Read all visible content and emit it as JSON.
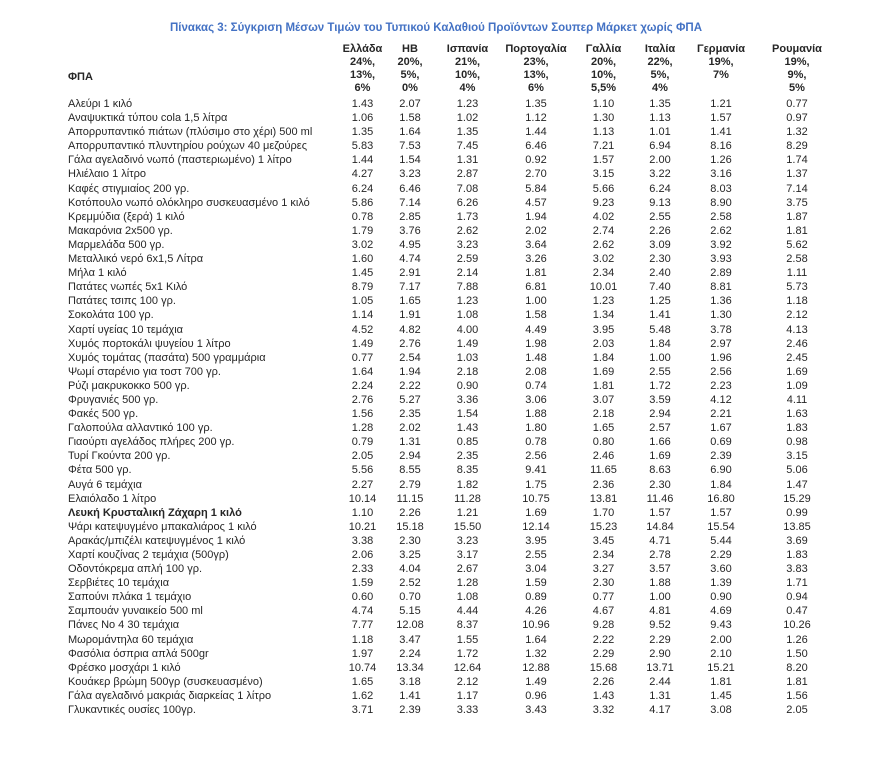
{
  "title": "Πίνακας 3: Σύγκριση Μέσων Τιμών του Τυπικού Καλαθιού Προϊόντων Σουπερ Μάρκετ χωρίς ΦΠΑ",
  "vat_row_label": "ΦΠΑ",
  "columns": [
    {
      "name": "Ελλάδα",
      "vat": [
        "24%,",
        "13%,",
        "6%"
      ]
    },
    {
      "name": "ΗΒ",
      "vat": [
        "20%,",
        "5%,",
        "0%"
      ]
    },
    {
      "name": "Ισπανία",
      "vat": [
        "21%,",
        "10%,",
        "4%"
      ]
    },
    {
      "name": "Πορτογαλία",
      "vat": [
        "23%,",
        "13%,",
        "6%"
      ]
    },
    {
      "name": "Γαλλία",
      "vat": [
        "20%,",
        "10%,",
        "5,5%"
      ]
    },
    {
      "name": "Ιταλία",
      "vat": [
        "22%,",
        "5%,",
        "4%"
      ]
    },
    {
      "name": "Γερμανία",
      "vat": [
        "19%,",
        "7%"
      ]
    },
    {
      "name": "Ρουμανία",
      "vat": [
        "19%,",
        "9%,",
        "5%"
      ]
    }
  ],
  "rows": [
    {
      "label": "Αλεύρι 1 κιλό",
      "values": [
        "1.43",
        "2.07",
        "1.23",
        "1.35",
        "1.10",
        "1.35",
        "1.21",
        "0.77"
      ],
      "bold": false
    },
    {
      "label": "Αναψυκτικά τύπου cola 1,5 λίτρα",
      "values": [
        "1.06",
        "1.58",
        "1.02",
        "1.12",
        "1.30",
        "1.13",
        "1.57",
        "0.97"
      ],
      "bold": false
    },
    {
      "label": "Απορρυπαντικό πιάτων (πλύσιμο στο χέρι) 500 ml",
      "values": [
        "1.35",
        "1.64",
        "1.35",
        "1.44",
        "1.13",
        "1.01",
        "1.41",
        "1.32"
      ],
      "bold": false
    },
    {
      "label": "Απορρυπαντικό πλυντηρίου ρούχων 40 μεζούρες",
      "values": [
        "5.83",
        "7.53",
        "7.45",
        "6.46",
        "7.21",
        "6.94",
        "8.16",
        "8.29"
      ],
      "bold": false
    },
    {
      "label": "Γάλα αγελαδινό νωπό (παστεριωμένο) 1 λίτρο",
      "values": [
        "1.44",
        "1.54",
        "1.31",
        "0.92",
        "1.57",
        "2.00",
        "1.26",
        "1.74"
      ],
      "bold": false
    },
    {
      "label": "Ηλιέλαιο 1 λίτρο",
      "values": [
        "4.27",
        "3.23",
        "2.87",
        "2.70",
        "3.15",
        "3.22",
        "3.16",
        "1.37"
      ],
      "bold": false
    },
    {
      "label": "Καφές στιγμιαίος 200 γρ.",
      "values": [
        "6.24",
        "6.46",
        "7.08",
        "5.84",
        "5.66",
        "6.24",
        "8.03",
        "7.14"
      ],
      "bold": false
    },
    {
      "label": "Κοτόπουλο νωπό ολόκληρο συσκευασμένο 1 κιλό",
      "values": [
        "5.86",
        "7.14",
        "6.26",
        "4.57",
        "9.23",
        "9.13",
        "8.90",
        "3.75"
      ],
      "bold": false
    },
    {
      "label": "Κρεμμύδια (ξερά) 1 κιλό",
      "values": [
        "0.78",
        "2.85",
        "1.73",
        "1.94",
        "4.02",
        "2.55",
        "2.58",
        "1.87"
      ],
      "bold": false
    },
    {
      "label": "Μακαρόνια 2x500 γρ.",
      "values": [
        "1.79",
        "3.76",
        "2.62",
        "2.02",
        "2.74",
        "2.26",
        "2.62",
        "1.81"
      ],
      "bold": false
    },
    {
      "label": "Μαρμελάδα 500 γρ.",
      "values": [
        "3.02",
        "4.95",
        "3.23",
        "3.64",
        "2.62",
        "3.09",
        "3.92",
        "5.62"
      ],
      "bold": false
    },
    {
      "label": "Μεταλλικό νερό 6x1,5 Λίτρα",
      "values": [
        "1.60",
        "4.74",
        "2.59",
        "3.26",
        "3.02",
        "2.30",
        "3.93",
        "2.58"
      ],
      "bold": false
    },
    {
      "label": "Μήλα 1 κιλό",
      "values": [
        "1.45",
        "2.91",
        "2.14",
        "1.81",
        "2.34",
        "2.40",
        "2.89",
        "1.11"
      ],
      "bold": false
    },
    {
      "label": "Πατάτες νωπές 5x1 Κιλό",
      "values": [
        "8.79",
        "7.17",
        "7.88",
        "6.81",
        "10.01",
        "7.40",
        "8.81",
        "5.73"
      ],
      "bold": false
    },
    {
      "label": "Πατάτες τσιπς 100 γρ.",
      "values": [
        "1.05",
        "1.65",
        "1.23",
        "1.00",
        "1.23",
        "1.25",
        "1.36",
        "1.18"
      ],
      "bold": false
    },
    {
      "label": "Σοκολάτα 100 γρ.",
      "values": [
        "1.14",
        "1.91",
        "1.08",
        "1.58",
        "1.34",
        "1.41",
        "1.30",
        "2.12"
      ],
      "bold": false
    },
    {
      "label": "Χαρτί υγείας 10 τεμάχια",
      "values": [
        "4.52",
        "4.82",
        "4.00",
        "4.49",
        "3.95",
        "5.48",
        "3.78",
        "4.13"
      ],
      "bold": false
    },
    {
      "label": "Χυμός πορτοκάλι ψυγείου 1 λίτρο",
      "values": [
        "1.49",
        "2.76",
        "1.49",
        "1.98",
        "2.03",
        "1.84",
        "2.97",
        "2.46"
      ],
      "bold": false
    },
    {
      "label": "Χυμός τομάτας (πασάτα) 500 γραμμάρια",
      "values": [
        "0.77",
        "2.54",
        "1.03",
        "1.48",
        "1.84",
        "1.00",
        "1.96",
        "2.45"
      ],
      "bold": false
    },
    {
      "label": "Ψωμί σταρένιο για τοστ 700 γρ.",
      "values": [
        "1.64",
        "1.94",
        "2.18",
        "2.08",
        "1.69",
        "2.55",
        "2.56",
        "1.69"
      ],
      "bold": false
    },
    {
      "label": "Ρύζι μακρυκοκκο 500 γρ.",
      "values": [
        "2.24",
        "2.22",
        "0.90",
        "0.74",
        "1.81",
        "1.72",
        "2.23",
        "1.09"
      ],
      "bold": false
    },
    {
      "label": "Φρυγανιές 500 γρ.",
      "values": [
        "2.76",
        "5.27",
        "3.36",
        "3.06",
        "3.07",
        "3.59",
        "4.12",
        "4.11"
      ],
      "bold": false
    },
    {
      "label": "Φακές 500 γρ.",
      "values": [
        "1.56",
        "2.35",
        "1.54",
        "1.88",
        "2.18",
        "2.94",
        "2.21",
        "1.63"
      ],
      "bold": false
    },
    {
      "label": "Γαλοπούλα αλλαντικό 100 γρ.",
      "values": [
        "1.28",
        "2.02",
        "1.43",
        "1.80",
        "1.65",
        "2.57",
        "1.67",
        "1.83"
      ],
      "bold": false
    },
    {
      "label": "Γιαούρτι αγελάδος πλήρες 200 γρ.",
      "values": [
        "0.79",
        "1.31",
        "0.85",
        "0.78",
        "0.80",
        "1.66",
        "0.69",
        "0.98"
      ],
      "bold": false
    },
    {
      "label": "Τυρί Γκούντα 200 γρ.",
      "values": [
        "2.05",
        "2.94",
        "2.35",
        "2.56",
        "2.46",
        "1.69",
        "2.39",
        "3.15"
      ],
      "bold": false
    },
    {
      "label": "Φέτα 500 γρ.",
      "values": [
        "5.56",
        "8.55",
        "8.35",
        "9.41",
        "11.65",
        "8.63",
        "6.90",
        "5.06"
      ],
      "bold": false
    },
    {
      "label": "Αυγά 6 τεμάχια",
      "values": [
        "2.27",
        "2.79",
        "1.82",
        "1.75",
        "2.36",
        "2.30",
        "1.84",
        "1.47"
      ],
      "bold": false
    },
    {
      "label": "Ελαιόλαδο 1 λίτρο",
      "values": [
        "10.14",
        "11.15",
        "11.28",
        "10.75",
        "13.81",
        "11.46",
        "16.80",
        "15.29"
      ],
      "bold": false
    },
    {
      "label": "Λευκή Κρυσταλική Ζάχαρη 1 κιλό",
      "values": [
        "1.10",
        "2.26",
        "1.21",
        "1.69",
        "1.70",
        "1.57",
        "1.57",
        "0.99"
      ],
      "bold": true
    },
    {
      "label": "Ψάρι κατεψυγμένο μπακαλιάρος 1 κιλό",
      "values": [
        "10.21",
        "15.18",
        "15.50",
        "12.14",
        "15.23",
        "14.84",
        "15.54",
        "13.85"
      ],
      "bold": false
    },
    {
      "label": "Αρακάς/μπιζέλι κατεψυγμένος 1 κιλό",
      "values": [
        "3.38",
        "2.30",
        "3.23",
        "3.95",
        "3.45",
        "4.71",
        "5.44",
        "3.69"
      ],
      "bold": false
    },
    {
      "label": "Χαρτί κουζίνας 2 τεμάχια (500γρ)",
      "values": [
        "2.06",
        "3.25",
        "3.17",
        "2.55",
        "2.34",
        "2.78",
        "2.29",
        "1.83"
      ],
      "bold": false
    },
    {
      "label": "Οδοντόκρεμα απλή 100 γρ.",
      "values": [
        "2.33",
        "4.04",
        "2.67",
        "3.04",
        "3.27",
        "3.57",
        "3.60",
        "3.83"
      ],
      "bold": false
    },
    {
      "label": "Σερβιέτες 10 τεμάχια",
      "values": [
        "1.59",
        "2.52",
        "1.28",
        "1.59",
        "2.30",
        "1.88",
        "1.39",
        "1.71"
      ],
      "bold": false
    },
    {
      "label": "Σαπούνι  πλάκα 1 τεμάχιο",
      "values": [
        "0.60",
        "0.70",
        "1.08",
        "0.89",
        "0.77",
        "1.00",
        "0.90",
        "0.94"
      ],
      "bold": false
    },
    {
      "label": "Σαμπουάν γυναικείο 500 ml",
      "values": [
        "4.74",
        "5.15",
        "4.44",
        "4.26",
        "4.67",
        "4.81",
        "4.69",
        "0.47"
      ],
      "bold": false
    },
    {
      "label": "Πάνες Νο 4 30 τεμάχια",
      "values": [
        "7.77",
        "12.08",
        "8.37",
        "10.96",
        "9.28",
        "9.52",
        "9.43",
        "10.26"
      ],
      "bold": false
    },
    {
      "label": "Μωρομάντηλα 60 τεμάχια",
      "values": [
        "1.18",
        "3.47",
        "1.55",
        "1.64",
        "2.22",
        "2.29",
        "2.00",
        "1.26"
      ],
      "bold": false
    },
    {
      "label": "Φασόλια όσπρια απλά 500gr",
      "values": [
        "1.97",
        "2.24",
        "1.72",
        "1.32",
        "2.29",
        "2.90",
        "2.10",
        "1.50"
      ],
      "bold": false
    },
    {
      "label": "Φρέσκο μοσχάρι 1 κιλό",
      "values": [
        "10.74",
        "13.34",
        "12.64",
        "12.88",
        "15.68",
        "13.71",
        "15.21",
        "8.20"
      ],
      "bold": false
    },
    {
      "label": "Κουάκερ βρώμη 500γρ (συσκευασμένο)",
      "values": [
        "1.65",
        "3.18",
        "2.12",
        "1.49",
        "2.26",
        "2.44",
        "1.81",
        "1.81"
      ],
      "bold": false
    },
    {
      "label": "Γάλα αγελαδινό μακριάς διαρκείας 1 λίτρο",
      "values": [
        "1.62",
        "1.41",
        "1.17",
        "0.96",
        "1.43",
        "1.31",
        "1.45",
        "1.56"
      ],
      "bold": false
    },
    {
      "label": "Γλυκαντικές ουσίες 100γρ.",
      "values": [
        "3.71",
        "2.39",
        "3.33",
        "3.43",
        "3.32",
        "4.17",
        "3.08",
        "2.05"
      ],
      "bold": false
    }
  ]
}
